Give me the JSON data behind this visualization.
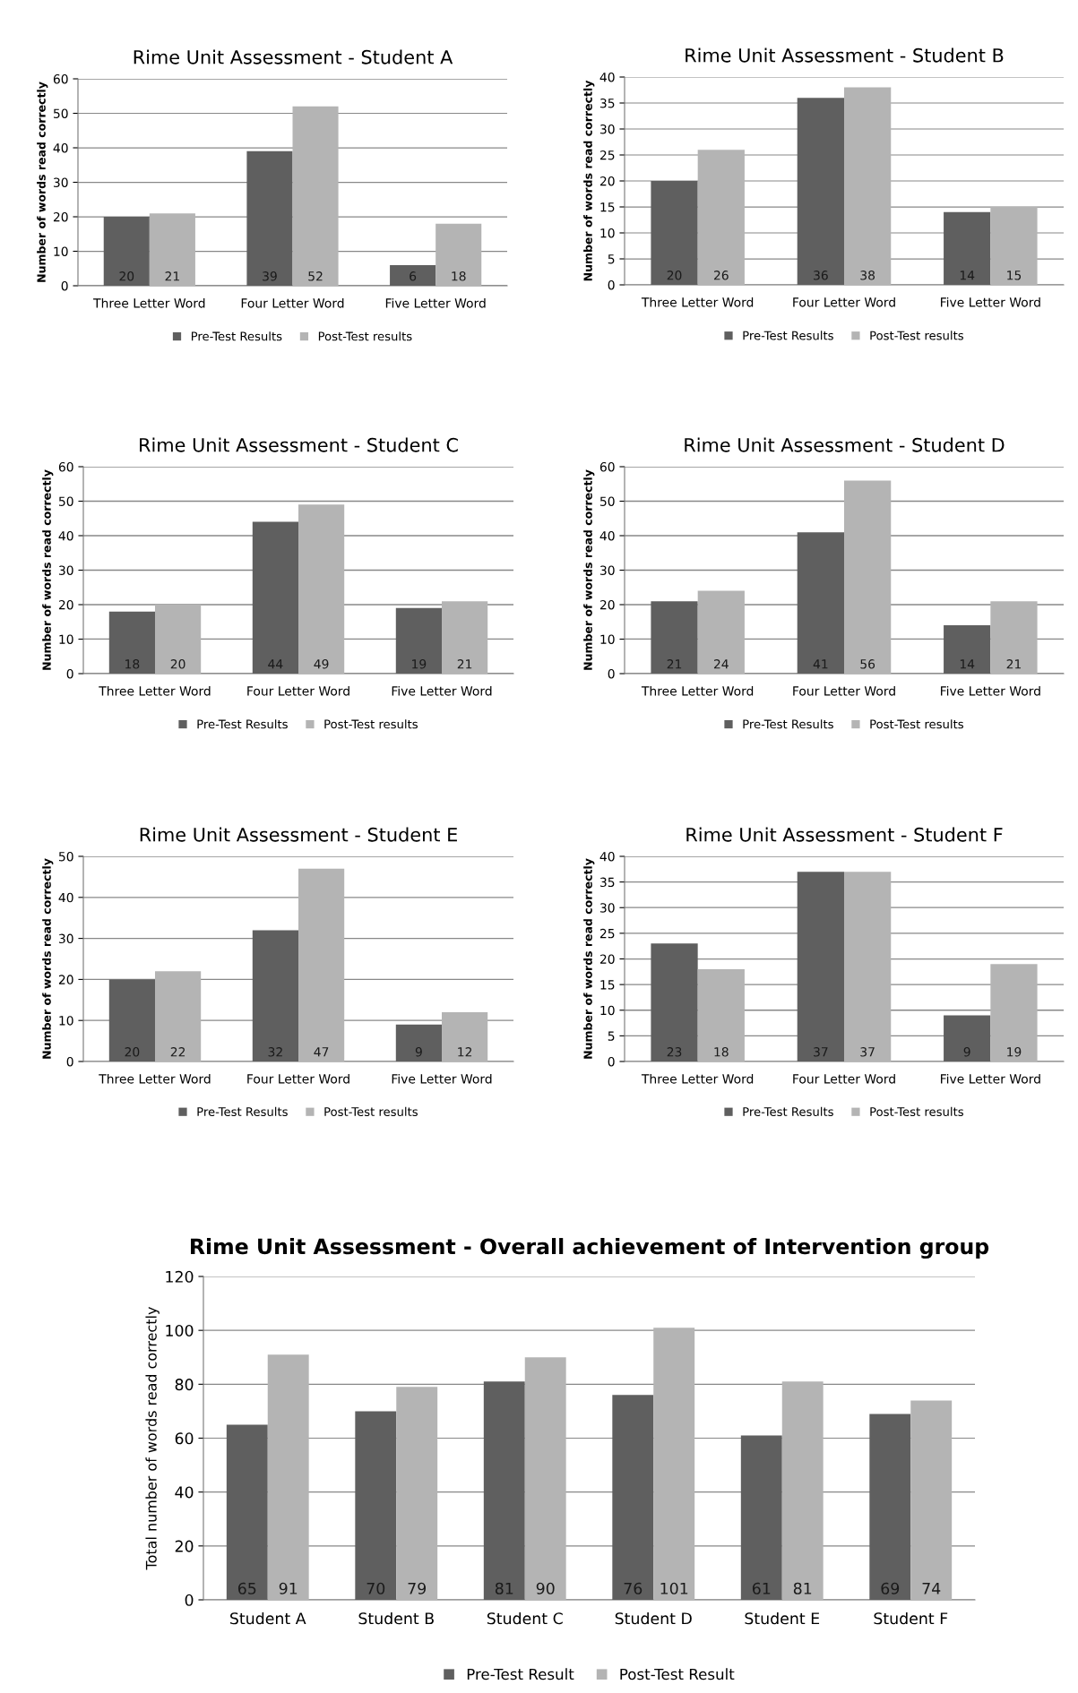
{
  "chart_data": [
    {
      "type": "bar",
      "title": "Rime Unit Assessment - Student A",
      "ylabel": "Number of words read correctly",
      "categories": [
        "Three Letter Word",
        "Four Letter Word",
        "Five Letter Word"
      ],
      "ylim": [
        0,
        60
      ],
      "yticks": [
        0,
        10,
        20,
        30,
        40,
        50,
        60
      ],
      "grid": "y",
      "legend": "bottom",
      "data_labels": true,
      "series": [
        {
          "name": "Pre-Test Results",
          "color": "#5f5f5f",
          "values": [
            20,
            39,
            6
          ]
        },
        {
          "name": "Post-Test results",
          "color": "#b4b4b4",
          "values": [
            21,
            52,
            18
          ]
        }
      ]
    },
    {
      "type": "bar",
      "title": "Rime Unit Assessment - Student B",
      "ylabel": "Number of words read correctly",
      "categories": [
        "Three Letter Word",
        "Four Letter Word",
        "Five Letter Word"
      ],
      "ylim": [
        0,
        40
      ],
      "yticks": [
        0,
        5,
        10,
        15,
        20,
        25,
        30,
        35,
        40
      ],
      "grid": "y",
      "legend": "bottom",
      "data_labels": true,
      "series": [
        {
          "name": "Pre-Test Results",
          "color": "#5f5f5f",
          "values": [
            20,
            36,
            14
          ]
        },
        {
          "name": "Post-Test results",
          "color": "#b4b4b4",
          "values": [
            26,
            38,
            15
          ]
        }
      ]
    },
    {
      "type": "bar",
      "title": "Rime Unit Assessment - Student C",
      "ylabel": "Number of words read correctly",
      "categories": [
        "Three Letter Word",
        "Four Letter Word",
        "Five Letter Word"
      ],
      "ylim": [
        0,
        60
      ],
      "yticks": [
        0,
        10,
        20,
        30,
        40,
        50,
        60
      ],
      "grid": "y",
      "legend": "bottom",
      "data_labels": true,
      "series": [
        {
          "name": "Pre-Test Results",
          "color": "#5f5f5f",
          "values": [
            18,
            44,
            19
          ]
        },
        {
          "name": "Post-Test results",
          "color": "#b4b4b4",
          "values": [
            20,
            49,
            21
          ]
        }
      ]
    },
    {
      "type": "bar",
      "title": "Rime Unit Assessment - Student D",
      "ylabel": "Number of words read correctly",
      "categories": [
        "Three Letter Word",
        "Four Letter Word",
        "Five Letter Word"
      ],
      "ylim": [
        0,
        60
      ],
      "yticks": [
        0,
        10,
        20,
        30,
        40,
        50,
        60
      ],
      "grid": "y",
      "legend": "bottom",
      "data_labels": true,
      "series": [
        {
          "name": "Pre-Test Results",
          "color": "#5f5f5f",
          "values": [
            21,
            41,
            14
          ]
        },
        {
          "name": "Post-Test results",
          "color": "#b4b4b4",
          "values": [
            24,
            56,
            21
          ]
        }
      ]
    },
    {
      "type": "bar",
      "title": "Rime Unit Assessment - Student E",
      "ylabel": "Number of words read correctly",
      "categories": [
        "Three Letter Word",
        "Four Letter Word",
        "Five Letter Word"
      ],
      "ylim": [
        0,
        50
      ],
      "yticks": [
        0,
        10,
        20,
        30,
        40,
        50
      ],
      "grid": "y",
      "legend": "bottom",
      "data_labels": true,
      "series": [
        {
          "name": "Pre-Test Results",
          "color": "#5f5f5f",
          "values": [
            20,
            32,
            9
          ]
        },
        {
          "name": "Post-Test results",
          "color": "#b4b4b4",
          "values": [
            22,
            47,
            12
          ]
        }
      ]
    },
    {
      "type": "bar",
      "title": "Rime Unit Assessment - Student F",
      "ylabel": "Number of words read correctly",
      "categories": [
        "Three Letter Word",
        "Four Letter Word",
        "Five Letter Word"
      ],
      "ylim": [
        0,
        40
      ],
      "yticks": [
        0,
        5,
        10,
        15,
        20,
        25,
        30,
        35,
        40
      ],
      "grid": "y",
      "legend": "bottom",
      "data_labels": true,
      "series": [
        {
          "name": "Pre-Test Results",
          "color": "#5f5f5f",
          "values": [
            23,
            37,
            9
          ]
        },
        {
          "name": "Post-Test results",
          "color": "#b4b4b4",
          "values": [
            18,
            37,
            19
          ]
        }
      ]
    },
    {
      "type": "bar",
      "title": "Rime Unit Assessment - Overall achievement of Intervention group",
      "ylabel": "Total number of words read correctly",
      "categories": [
        "Student A",
        "Student B",
        "Student C",
        "Student D",
        "Student E",
        "Student F"
      ],
      "ylim": [
        0,
        120
      ],
      "yticks": [
        0,
        20,
        40,
        60,
        80,
        100,
        120
      ],
      "grid": "y",
      "legend": "bottom",
      "data_labels": true,
      "series": [
        {
          "name": "Pre-Test Result",
          "color": "#5f5f5f",
          "values": [
            65,
            70,
            81,
            76,
            61,
            69
          ]
        },
        {
          "name": "Post-Test Result",
          "color": "#b4b4b4",
          "values": [
            91,
            79,
            90,
            101,
            81,
            74
          ]
        }
      ]
    }
  ]
}
